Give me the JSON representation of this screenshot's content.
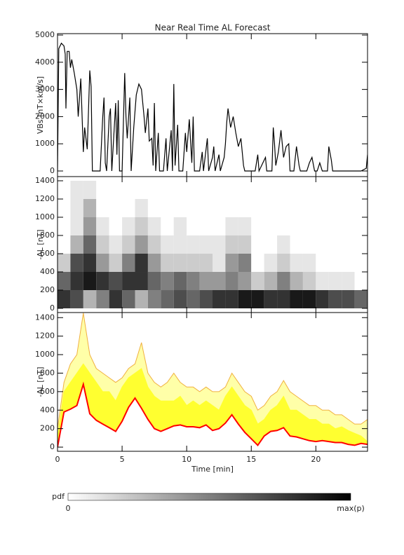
{
  "chart_data": [
    {
      "type": "line",
      "title": "Near Real Time AL Forecast",
      "ylabel": "VBs [nT×km/s]",
      "color": "#000000",
      "xlim": [
        0,
        24
      ],
      "ylim": [
        -206,
        5052
      ],
      "xticks": [
        0,
        5,
        10,
        15,
        20
      ],
      "yticks": [
        0,
        1000,
        2000,
        3000,
        4000,
        5000
      ],
      "x": [
        0,
        0.1,
        0.3,
        0.5,
        0.6,
        0.65,
        0.75,
        0.9,
        1.0,
        1.1,
        1.3,
        1.5,
        1.6,
        1.8,
        2.0,
        2.1,
        2.3,
        2.5,
        2.6,
        2.7,
        3.3,
        3.5,
        3.6,
        3.7,
        3.8,
        4.0,
        4.1,
        4.2,
        4.5,
        4.6,
        4.7,
        4.8,
        5.0,
        5.2,
        5.3,
        5.4,
        5.6,
        5.7,
        5.9,
        6.1,
        6.3,
        6.5,
        6.7,
        6.8,
        7.0,
        7.1,
        7.3,
        7.4,
        7.5,
        7.6,
        7.8,
        7.9,
        8.2,
        8.4,
        8.5,
        8.8,
        8.9,
        9.0,
        9.1,
        9.3,
        9.4,
        9.7,
        9.9,
        10.0,
        10.2,
        10.4,
        10.5,
        10.6,
        11.0,
        11.2,
        11.3,
        11.6,
        11.7,
        12.0,
        12.1,
        12.2,
        12.5,
        12.6,
        12.9,
        13.0,
        13.1,
        13.2,
        13.4,
        13.6,
        13.8,
        14.0,
        14.2,
        14.4,
        14.5,
        15.3,
        15.5,
        15.6,
        15.9,
        16.1,
        16.2,
        16.6,
        16.7,
        16.8,
        16.9,
        17.1,
        17.3,
        17.5,
        17.7,
        17.9,
        18.0,
        18.3,
        18.5,
        18.7,
        18.8,
        19.3,
        19.5,
        19.7,
        19.9,
        20.1,
        20.3,
        20.5,
        20.9,
        21.0,
        21.2,
        21.3,
        23.3,
        23.5,
        23.9,
        24.0
      ],
      "values": [
        0,
        4500,
        4700,
        4600,
        4300,
        2300,
        4400,
        4400,
        3800,
        4100,
        3600,
        3000,
        2000,
        3400,
        700,
        1600,
        800,
        3700,
        3100,
        0,
        0,
        2000,
        2700,
        300,
        0,
        2000,
        2300,
        0,
        2500,
        600,
        2600,
        0,
        0,
        3600,
        2000,
        1200,
        2700,
        0,
        1600,
        2800,
        3200,
        3000,
        2000,
        1400,
        2300,
        1100,
        1200,
        200,
        2500,
        0,
        1400,
        0,
        0,
        1200,
        0,
        1500,
        0,
        3200,
        200,
        1700,
        0,
        0,
        1400,
        700,
        1900,
        300,
        2000,
        0,
        0,
        700,
        0,
        1200,
        0,
        500,
        900,
        0,
        600,
        0,
        500,
        1000,
        1800,
        2300,
        1600,
        2000,
        1400,
        900,
        1200,
        200,
        0,
        0,
        600,
        0,
        300,
        500,
        0,
        0,
        1600,
        1000,
        200,
        700,
        1500,
        500,
        900,
        1000,
        0,
        0,
        900,
        200,
        0,
        0,
        300,
        500,
        0,
        0,
        300,
        0,
        0,
        900,
        400,
        0,
        0,
        0,
        100,
        600
      ]
    },
    {
      "type": "heatmap",
      "ylabel": "-AL [nT]",
      "xlim": [
        0,
        24
      ],
      "ylim": [
        -46,
        1446
      ],
      "xticks": [
        0,
        5,
        10,
        15,
        20
      ],
      "yticks": [
        0,
        200,
        400,
        600,
        800,
        1000,
        1200,
        1400
      ],
      "xbins": [
        0,
        1,
        2,
        3,
        4,
        5,
        6,
        7,
        8,
        9,
        10,
        11,
        12,
        13,
        14,
        15,
        16,
        17,
        18,
        19,
        20,
        21,
        22,
        23,
        24
      ],
      "ybins": [
        0,
        200,
        400,
        600,
        800,
        1000,
        1200,
        1400
      ],
      "z": [
        [
          8,
          7,
          3,
          5,
          8,
          6,
          3,
          5,
          6,
          7,
          6,
          7,
          8,
          8,
          9,
          9,
          8,
          8,
          9,
          9,
          8,
          7,
          7,
          6
        ],
        [
          6,
          8,
          9,
          8,
          7,
          8,
          8,
          6,
          5,
          6,
          5,
          4,
          4,
          5,
          4,
          2,
          3,
          5,
          3,
          2,
          1,
          1,
          1,
          0
        ],
        [
          2,
          7,
          8,
          4,
          2,
          5,
          8,
          4,
          2,
          2,
          2,
          2,
          1,
          4,
          5,
          0,
          1,
          2,
          1,
          1,
          0,
          0,
          0,
          0
        ],
        [
          0,
          3,
          6,
          2,
          1,
          2,
          4,
          2,
          1,
          1,
          1,
          1,
          1,
          2,
          2,
          0,
          0,
          1,
          0,
          0,
          0,
          0,
          0,
          0
        ],
        [
          0,
          1,
          4,
          1,
          0,
          1,
          2,
          1,
          0,
          1,
          0,
          0,
          0,
          1,
          1,
          0,
          0,
          0,
          0,
          0,
          0,
          0,
          0,
          0
        ],
        [
          0,
          1,
          3,
          0,
          0,
          0,
          1,
          0,
          0,
          0,
          0,
          0,
          0,
          0,
          0,
          0,
          0,
          0,
          0,
          0,
          0,
          0,
          0,
          0
        ],
        [
          0,
          1,
          1,
          0,
          0,
          0,
          0,
          0,
          0,
          0,
          0,
          0,
          0,
          0,
          0,
          0,
          0,
          0,
          0,
          0,
          0,
          0,
          0,
          0
        ]
      ]
    },
    {
      "type": "band",
      "ylabel": "-AL [nT]",
      "xlabel": "Time [min]",
      "xlim": [
        0,
        24
      ],
      "ylim": [
        -45,
        1455
      ],
      "xticks": [
        0,
        5,
        10,
        15,
        20
      ],
      "yticks": [
        0,
        200,
        400,
        600,
        800,
        1000,
        1200,
        1400
      ],
      "x": [
        0,
        0.5,
        1,
        1.5,
        2,
        2.5,
        3,
        3.5,
        4,
        4.5,
        5,
        5.5,
        6,
        6.5,
        7,
        7.5,
        8,
        8.5,
        9,
        9.5,
        10,
        10.5,
        11,
        11.5,
        12,
        12.5,
        13,
        13.5,
        14,
        14.5,
        15,
        15.5,
        16,
        16.5,
        17,
        17.5,
        18,
        18.5,
        19,
        19.5,
        20,
        20.5,
        21,
        21.5,
        22,
        22.5,
        23,
        23.5,
        24
      ],
      "series": [
        {
          "color": "#f0b040",
          "fill": "#ffffa8",
          "values": [
            200,
            700,
            900,
            1000,
            1450,
            1000,
            850,
            800,
            750,
            700,
            750,
            850,
            900,
            1130,
            800,
            700,
            650,
            700,
            800,
            700,
            650,
            650,
            600,
            650,
            600,
            600,
            650,
            800,
            700,
            600,
            550,
            400,
            450,
            550,
            600,
            720,
            600,
            550,
            500,
            450,
            450,
            400,
            400,
            350,
            350,
            300,
            250,
            250,
            300
          ]
        },
        {
          "color": "#ffff30",
          "fill": "#ffff30",
          "values": [
            100,
            600,
            700,
            800,
            900,
            800,
            700,
            600,
            600,
            500,
            650,
            750,
            800,
            850,
            650,
            550,
            500,
            500,
            500,
            550,
            450,
            500,
            450,
            500,
            450,
            400,
            550,
            650,
            550,
            450,
            400,
            250,
            300,
            400,
            450,
            550,
            400,
            400,
            350,
            300,
            300,
            250,
            250,
            200,
            220,
            180,
            150,
            120,
            60
          ]
        },
        {
          "color": "#ff0000",
          "fill": "#ffffff",
          "values": [
            0,
            380,
            410,
            450,
            680,
            360,
            290,
            250,
            210,
            170,
            280,
            430,
            530,
            420,
            300,
            200,
            170,
            200,
            230,
            240,
            220,
            220,
            210,
            240,
            180,
            200,
            260,
            350,
            250,
            160,
            90,
            20,
            120,
            170,
            180,
            210,
            120,
            110,
            90,
            70,
            60,
            70,
            60,
            50,
            50,
            30,
            20,
            40,
            30
          ]
        }
      ]
    }
  ],
  "colorbar": {
    "label": "pdf",
    "min_label": "0",
    "max_label": "max(p)"
  }
}
